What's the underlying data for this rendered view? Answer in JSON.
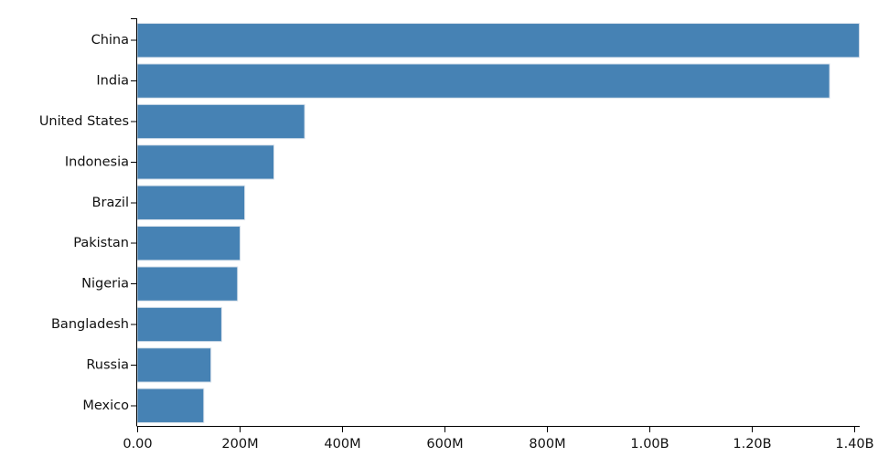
{
  "chart_data": {
    "type": "bar",
    "orientation": "horizontal",
    "title": "",
    "xlabel": "",
    "ylabel": "",
    "categories": [
      "China",
      "India",
      "United States",
      "Indonesia",
      "Brazil",
      "Pakistan",
      "Nigeria",
      "Bangladesh",
      "Russia",
      "Mexico"
    ],
    "values": [
      1410000000,
      1352000000,
      327000000,
      267000000,
      210000000,
      201000000,
      196000000,
      165000000,
      144000000,
      130000000
    ],
    "xlim": [
      0,
      1400000000
    ],
    "x_ticks": [
      0,
      200000000,
      400000000,
      600000000,
      800000000,
      1000000000,
      1200000000,
      1400000000
    ],
    "x_tick_labels": [
      "0.00",
      "200M",
      "400M",
      "600M",
      "800M",
      "1.00B",
      "1.20B",
      "1.40B"
    ],
    "bar_color": "#4682b4",
    "grid": false,
    "legend": "none"
  }
}
